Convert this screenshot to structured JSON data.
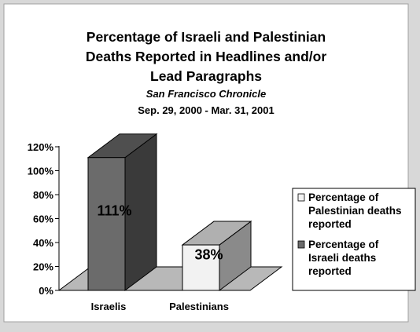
{
  "chart_data": {
    "type": "bar",
    "title_lines": [
      "Percentage of Israeli and Palestinian",
      "Deaths Reported in Headlines and/or",
      "Lead Paragraphs"
    ],
    "subtitle": "San Francisco Chronicle",
    "date_range": "Sep. 29, 2000 - Mar. 31, 2001",
    "categories": [
      "Israelis",
      "Palestinians"
    ],
    "series": [
      {
        "name_lines": [
          "Percentage of",
          "Palestinian deaths",
          "reported"
        ],
        "color": "#f2f2f2",
        "category": "Palestinians",
        "value": 38,
        "value_label": "38%"
      },
      {
        "name_lines": [
          "Percentage of",
          "Israeli deaths",
          "reported"
        ],
        "color": "#6b6b6b",
        "category": "Israelis",
        "value": 111,
        "value_label": "111%"
      }
    ],
    "y_ticks": [
      "0%",
      "20%",
      "40%",
      "60%",
      "80%",
      "100%",
      "120%"
    ],
    "ylim": [
      0,
      120
    ],
    "legend_position": "right",
    "grid": false
  }
}
